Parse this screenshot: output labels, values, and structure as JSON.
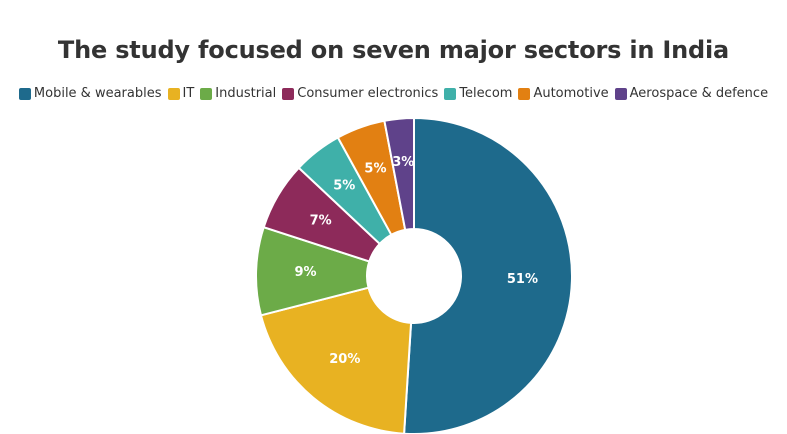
{
  "chart_data": {
    "type": "pie",
    "donut": true,
    "title": "The study focused on seven major sectors in India",
    "legend_position": "top",
    "categories": [
      "Mobile & wearables",
      "IT",
      "Industrial",
      "Consumer electronics",
      "Telecom",
      "Automotive",
      "Aerospace & defence"
    ],
    "values": [
      51,
      20,
      9,
      7,
      5,
      5,
      3
    ],
    "labels": [
      "51%",
      "20%",
      "9%",
      "7%",
      "5%",
      "5%",
      "3%"
    ],
    "colors": [
      "#1e6a8c",
      "#e8b222",
      "#6cab48",
      "#8d2a5a",
      "#3fb0a9",
      "#e28012",
      "#5f428a"
    ]
  }
}
